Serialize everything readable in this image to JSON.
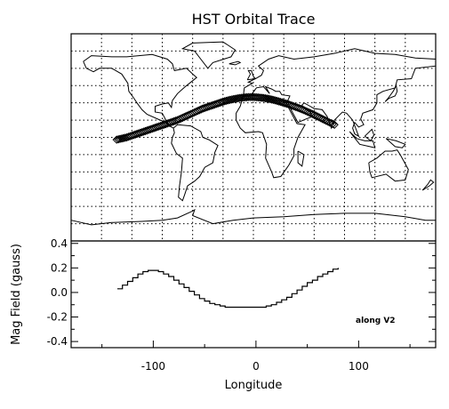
{
  "chart_data": [
    {
      "type": "scatter",
      "title": "HST Orbital Trace",
      "map": "world-coastlines",
      "xlim": [
        -180,
        180
      ],
      "ylim": [
        -90,
        90
      ],
      "grid": true,
      "series": [
        {
          "marker": "diamond",
          "x": [
            -135,
            -130,
            -125,
            -120,
            -115,
            -110,
            -105,
            -100,
            -95,
            -90,
            -85,
            -80,
            -75,
            -70,
            -65,
            -60,
            -55,
            -50,
            -45,
            -40,
            -35,
            -30,
            -25,
            -20,
            -15,
            -10,
            -5,
            0,
            5,
            10,
            15,
            20,
            25,
            30,
            35,
            40,
            45,
            50,
            55,
            60,
            65,
            70,
            75,
            80
          ],
          "y": [
            -2,
            -1,
            0,
            1.5,
            3,
            4.5,
            6,
            7.5,
            9,
            10.5,
            12,
            13.5,
            15,
            17,
            19,
            21,
            23,
            25,
            26.5,
            28,
            29.5,
            31,
            32.2,
            33.2,
            34,
            34.6,
            35,
            35,
            34.7,
            34.2,
            33.5,
            32.5,
            31.3,
            30,
            28.6,
            27,
            25.4,
            23.6,
            21.6,
            19.6,
            17.4,
            15.2,
            13,
            11
          ]
        }
      ]
    },
    {
      "type": "line",
      "xlabel": "Longitude",
      "ylabel": "Mag Field (gauss)",
      "xlim": [
        -180,
        175
      ],
      "ylim": [
        -0.45,
        0.42
      ],
      "xticks": [
        "-100",
        "0",
        "100"
      ],
      "xtick_values": [
        -100,
        0,
        100
      ],
      "yticks": [
        "0.4",
        "0.2",
        "0.0",
        "-0.2",
        "-0.4"
      ],
      "ytick_values": [
        0.4,
        0.2,
        0.0,
        -0.2,
        -0.4
      ],
      "annotation": "along V2",
      "series": [
        {
          "x": [
            -135,
            -130,
            -125,
            -120,
            -115,
            -110,
            -105,
            -100,
            -95,
            -90,
            -85,
            -80,
            -75,
            -70,
            -65,
            -60,
            -55,
            -50,
            -45,
            -40,
            -35,
            -30,
            -25,
            -20,
            -15,
            -10,
            -5,
            0,
            5,
            10,
            15,
            20,
            25,
            30,
            35,
            40,
            45,
            50,
            55,
            60,
            65,
            70,
            75,
            80
          ],
          "y": [
            0.03,
            0.06,
            0.09,
            0.12,
            0.15,
            0.17,
            0.18,
            0.18,
            0.17,
            0.15,
            0.13,
            0.1,
            0.07,
            0.04,
            0.01,
            -0.02,
            -0.05,
            -0.07,
            -0.09,
            -0.1,
            -0.11,
            -0.12,
            -0.12,
            -0.12,
            -0.12,
            -0.12,
            -0.12,
            -0.12,
            -0.12,
            -0.11,
            -0.1,
            -0.08,
            -0.06,
            -0.04,
            -0.01,
            0.02,
            0.05,
            0.08,
            0.1,
            0.13,
            0.15,
            0.17,
            0.19,
            0.2
          ]
        }
      ]
    }
  ]
}
